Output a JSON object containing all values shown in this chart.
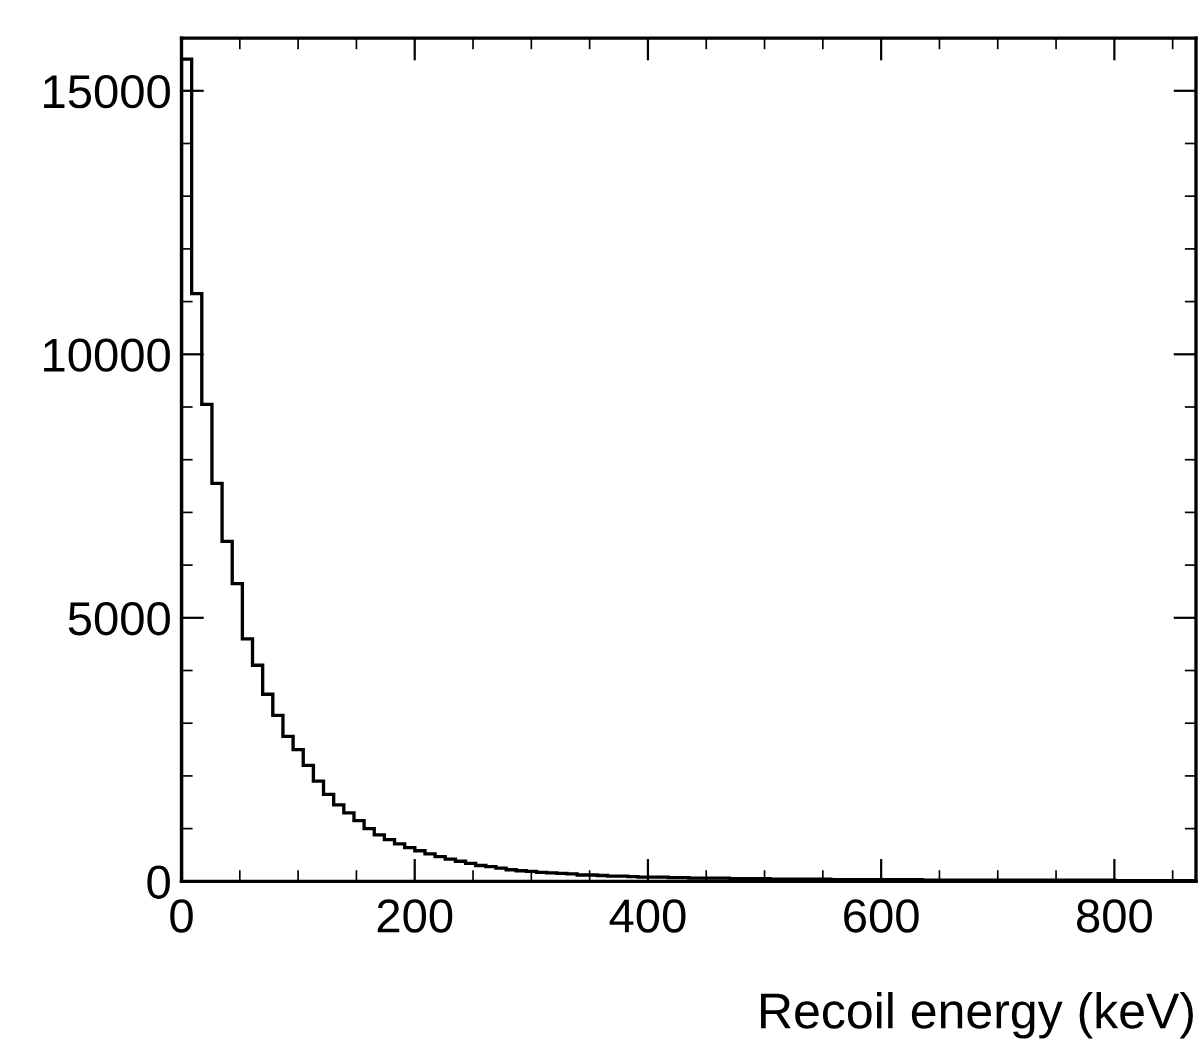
{
  "chart_data": {
    "type": "histogram",
    "xlabel": "Recoil energy (keV)",
    "bins": [
      0,
      8.7,
      17.4,
      26.1,
      34.8,
      43.5,
      52.2,
      60.9,
      69.6,
      78.3,
      87,
      95.7,
      104.4,
      113.1,
      121.8,
      130.5,
      139.2,
      147.9,
      156.6,
      165.3,
      174,
      182.7,
      191.4,
      200.1,
      208.8,
      217.5,
      226.2,
      234.9,
      243.6,
      252.3,
      261,
      269.7,
      278.4,
      287.1,
      295.8,
      304.5,
      313.2,
      321.9,
      330.6,
      339.3,
      348,
      356.7,
      365.4,
      374.1,
      382.8,
      391.5,
      400.2,
      408.9,
      417.6,
      426.3,
      435,
      443.7,
      452.4,
      461.1,
      469.8,
      478.5,
      487.2,
      495.9,
      504.6,
      513.3,
      522,
      530.7,
      539.4,
      548.1,
      556.8,
      565.5,
      574.2,
      582.9,
      591.6,
      600.3,
      609,
      617.7,
      626.4,
      635.1,
      643.8,
      652.5,
      661.2,
      669.9,
      678.6,
      687.3,
      696,
      704.7,
      713.4,
      722.1,
      730.8,
      739.5,
      748.2,
      756.9,
      765.6,
      774.3,
      783,
      791.7,
      800.4,
      809.1,
      817.8,
      826.5,
      835.2,
      843.9,
      852.6,
      861.3,
      870
    ],
    "values": [
      15600,
      11150,
      9050,
      7550,
      6450,
      5650,
      4600,
      4100,
      3550,
      3150,
      2750,
      2500,
      2200,
      1900,
      1650,
      1450,
      1300,
      1150,
      1000,
      880,
      790,
      710,
      640,
      580,
      520,
      470,
      420,
      380,
      340,
      300,
      280,
      250,
      220,
      200,
      190,
      170,
      160,
      150,
      140,
      120,
      120,
      110,
      100,
      100,
      90,
      80,
      80,
      80,
      70,
      70,
      60,
      60,
      60,
      60,
      50,
      50,
      50,
      50,
      40,
      40,
      40,
      40,
      40,
      40,
      30,
      30,
      30,
      30,
      30,
      30,
      30,
      30,
      30,
      20,
      20,
      20,
      20,
      20,
      20,
      20,
      20,
      20,
      20,
      20,
      20,
      20,
      20,
      20,
      20,
      20,
      20,
      20,
      10,
      10,
      10,
      10,
      10,
      10,
      10,
      10
    ],
    "color": "#000000",
    "xlim": [
      0,
      870
    ],
    "ylim": [
      0,
      16000
    ],
    "xticks": [
      0,
      200,
      400,
      600,
      800
    ],
    "yticks": [
      0,
      5000,
      10000,
      15000
    ],
    "grid": false,
    "legend": false
  }
}
